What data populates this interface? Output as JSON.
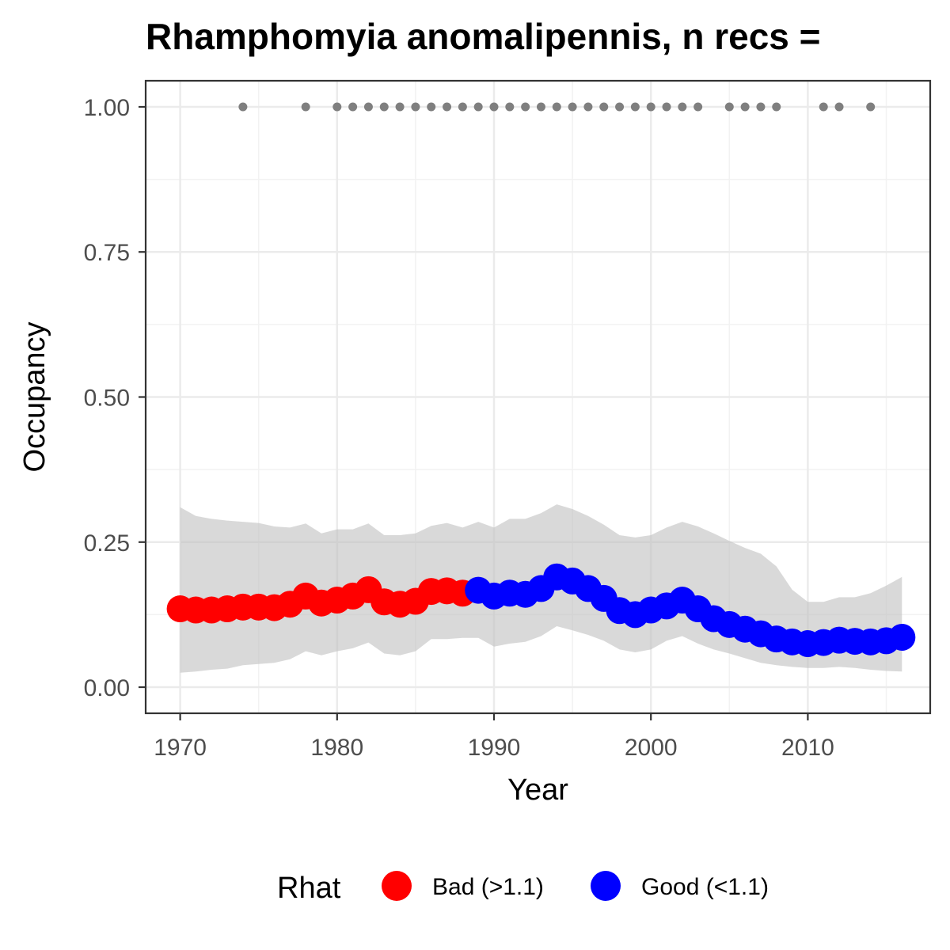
{
  "chart_data": {
    "type": "line",
    "title": "Rhamphomyia anomalipennis, n recs =",
    "xlabel": "Year",
    "ylabel": "Occupancy",
    "xlim": [
      1967.8,
      2017.8
    ],
    "ylim": [
      -0.045,
      1.045
    ],
    "x_ticks": [
      1970,
      1980,
      1990,
      2000,
      2010
    ],
    "x_tick_labels": [
      "1970",
      "1980",
      "1990",
      "2000",
      "2010"
    ],
    "y_ticks": [
      0,
      0.25,
      0.5,
      0.75,
      1.0
    ],
    "y_tick_labels": [
      "0.00",
      "0.25",
      "0.50",
      "0.75",
      "1.00"
    ],
    "grid": true,
    "legend": {
      "title": "Rhat",
      "position": "bottom",
      "entries": [
        {
          "label": "Bad (>1.1)",
          "color": "#ff0000"
        },
        {
          "label": "Good (<1.1)",
          "color": "#0000ff"
        }
      ]
    },
    "series": [
      {
        "name": "Bad (>1.1)",
        "color": "#ff0000",
        "x": [
          1970,
          1971,
          1972,
          1973,
          1974,
          1975,
          1976,
          1977,
          1978,
          1979,
          1980,
          1981,
          1982,
          1983,
          1984,
          1985,
          1986,
          1987,
          1988
        ],
        "y": [
          0.135,
          0.133,
          0.133,
          0.135,
          0.138,
          0.138,
          0.137,
          0.143,
          0.157,
          0.145,
          0.15,
          0.157,
          0.168,
          0.147,
          0.143,
          0.148,
          0.165,
          0.166,
          0.162
        ]
      },
      {
        "name": "Good (<1.1)",
        "color": "#0000ff",
        "x": [
          1989,
          1990,
          1991,
          1992,
          1993,
          1994,
          1995,
          1996,
          1997,
          1998,
          1999,
          2000,
          2001,
          2002,
          2003,
          2004,
          2005,
          2006,
          2007,
          2008,
          2009,
          2010,
          2011,
          2012,
          2013,
          2014,
          2015,
          2016
        ],
        "y": [
          0.167,
          0.157,
          0.162,
          0.16,
          0.17,
          0.19,
          0.183,
          0.17,
          0.153,
          0.132,
          0.125,
          0.133,
          0.14,
          0.15,
          0.135,
          0.118,
          0.108,
          0.1,
          0.092,
          0.083,
          0.078,
          0.075,
          0.077,
          0.081,
          0.079,
          0.078,
          0.08,
          0.086
        ]
      }
    ],
    "ribbon": {
      "color": "#bfbfbf",
      "x": [
        1970,
        1971,
        1972,
        1973,
        1974,
        1975,
        1976,
        1977,
        1978,
        1979,
        1980,
        1981,
        1982,
        1983,
        1984,
        1985,
        1986,
        1987,
        1988,
        1989,
        1990,
        1991,
        1992,
        1993,
        1994,
        1995,
        1996,
        1997,
        1998,
        1999,
        2000,
        2001,
        2002,
        2003,
        2004,
        2005,
        2006,
        2007,
        2008,
        2009,
        2010,
        2011,
        2012,
        2013,
        2014,
        2015,
        2016
      ],
      "lower": [
        0.025,
        0.027,
        0.03,
        0.032,
        0.038,
        0.04,
        0.042,
        0.048,
        0.062,
        0.055,
        0.062,
        0.067,
        0.077,
        0.058,
        0.055,
        0.062,
        0.083,
        0.083,
        0.085,
        0.085,
        0.07,
        0.075,
        0.078,
        0.088,
        0.105,
        0.098,
        0.09,
        0.08,
        0.065,
        0.06,
        0.065,
        0.08,
        0.088,
        0.075,
        0.065,
        0.058,
        0.05,
        0.042,
        0.038,
        0.035,
        0.033,
        0.033,
        0.035,
        0.033,
        0.03,
        0.028,
        0.027
      ],
      "upper": [
        0.31,
        0.295,
        0.29,
        0.287,
        0.285,
        0.283,
        0.277,
        0.275,
        0.282,
        0.265,
        0.272,
        0.272,
        0.282,
        0.262,
        0.262,
        0.265,
        0.278,
        0.283,
        0.275,
        0.285,
        0.275,
        0.29,
        0.29,
        0.3,
        0.315,
        0.307,
        0.295,
        0.28,
        0.262,
        0.258,
        0.262,
        0.275,
        0.285,
        0.277,
        0.265,
        0.252,
        0.24,
        0.23,
        0.208,
        0.168,
        0.147,
        0.147,
        0.155,
        0.155,
        0.162,
        0.175,
        0.19
      ]
    },
    "records": {
      "color": "#7f7f7f",
      "y": 1.0,
      "x": [
        1974,
        1978,
        1980,
        1981,
        1982,
        1983,
        1984,
        1985,
        1986,
        1987,
        1988,
        1989,
        1990,
        1991,
        1992,
        1993,
        1994,
        1995,
        1996,
        1997,
        1998,
        1999,
        2000,
        2001,
        2002,
        2003,
        2005,
        2006,
        2007,
        2008,
        2011,
        2012,
        2014
      ]
    }
  }
}
